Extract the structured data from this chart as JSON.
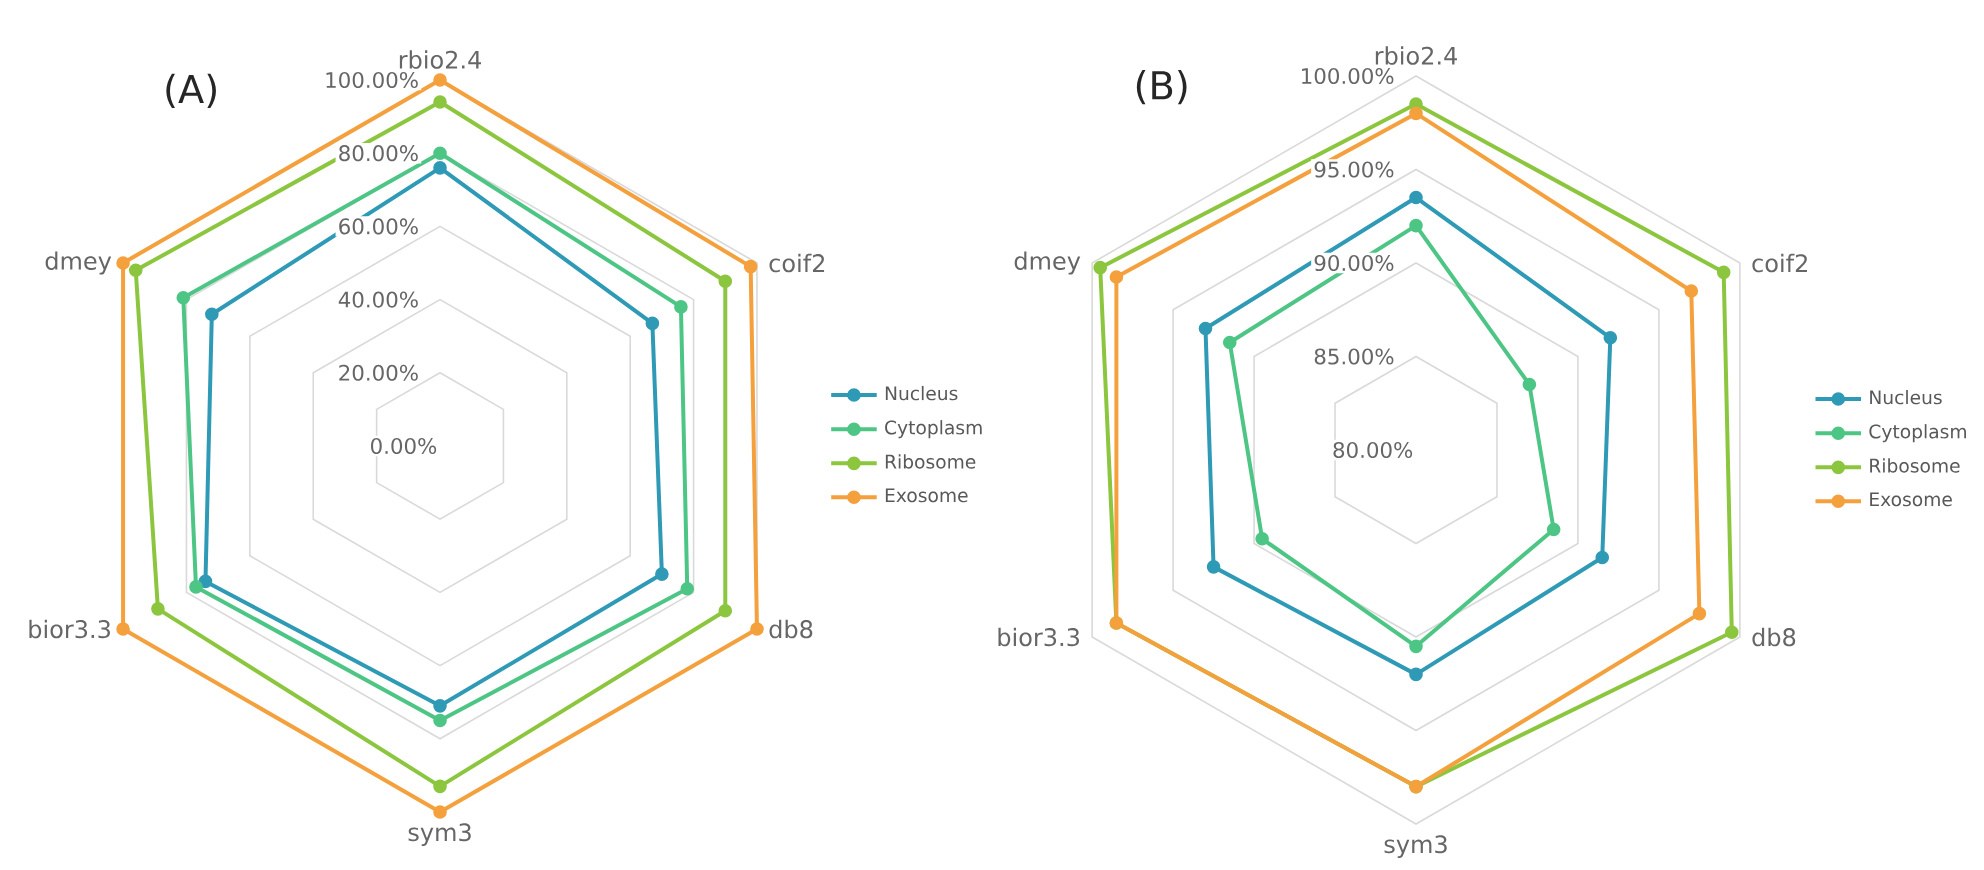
{
  "chart_data": [
    {
      "type": "radar",
      "title": "(A)",
      "categories": [
        "rbio2.4",
        "coif2",
        "db8",
        "sym3",
        "bior3.3",
        "dmey"
      ],
      "ylim": [
        0,
        100
      ],
      "yticks": [
        {
          "value": 0,
          "label": "0.00%"
        },
        {
          "value": 20,
          "label": "20.00%"
        },
        {
          "value": 40,
          "label": "40.00%"
        },
        {
          "value": 60,
          "label": "60.00%"
        },
        {
          "value": 80,
          "label": "80.00%"
        },
        {
          "value": 100,
          "label": "100.00%"
        }
      ],
      "grid": true,
      "legend": "right",
      "marker": "circle",
      "series": [
        {
          "name": "Nucleus",
          "color": "#2e9ab5",
          "values": [
            76,
            67,
            70,
            71,
            74,
            72
          ]
        },
        {
          "name": "Cytoplasm",
          "color": "#4dc585",
          "values": [
            80,
            76,
            78,
            75,
            77,
            81
          ]
        },
        {
          "name": "Ribosome",
          "color": "#8cc63f",
          "values": [
            94,
            90,
            90,
            93,
            89,
            96
          ]
        },
        {
          "name": "Exosome",
          "color": "#f4a03c",
          "values": [
            100,
            98,
            100,
            100,
            100,
            100
          ]
        }
      ]
    },
    {
      "type": "radar",
      "title": "(B)",
      "categories": [
        "rbio2.4",
        "coif2",
        "db8",
        "sym3",
        "bior3.3",
        "dmey"
      ],
      "ylim": [
        80,
        100
      ],
      "yticks": [
        {
          "value": 80,
          "label": "80.00%"
        },
        {
          "value": 85,
          "label": "85.00%"
        },
        {
          "value": 90,
          "label": "90.00%"
        },
        {
          "value": 95,
          "label": "95.00%"
        },
        {
          "value": 100,
          "label": "100.00%"
        }
      ],
      "grid": true,
      "legend": "right",
      "marker": "circle",
      "series": [
        {
          "name": "Nucleus",
          "color": "#2e9ab5",
          "values": [
            93.5,
            92,
            91.5,
            92,
            92.5,
            93
          ]
        },
        {
          "name": "Cytoplasm",
          "color": "#4dc585",
          "values": [
            92,
            87,
            88.5,
            90.5,
            89.5,
            91.5
          ]
        },
        {
          "name": "Ribosome",
          "color": "#8cc63f",
          "values": [
            98.5,
            99,
            99.5,
            98,
            98.5,
            99.5
          ]
        },
        {
          "name": "Exosome",
          "color": "#f4a03c",
          "values": [
            98,
            97,
            97.5,
            98,
            98.5,
            98.5
          ]
        }
      ]
    }
  ]
}
